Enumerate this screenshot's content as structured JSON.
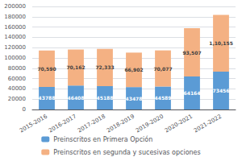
{
  "chart_data": {
    "type": "bar",
    "stacked": true,
    "categories": [
      "2015-2016",
      "2016-2017",
      "2017-2018",
      "2018-2019",
      "2019-2020",
      "2020-2021",
      "2021-2022"
    ],
    "series": [
      {
        "name": "Preinscritos en Primera Opción",
        "color": "#5b9bd5",
        "values": [
          43788,
          46408,
          45188,
          43478,
          44589,
          64164,
          73456
        ]
      },
      {
        "name": "Preinscritos en segunda y sucesivas opciones",
        "color": "#f4b183",
        "values": [
          70590,
          70162,
          72333,
          66902,
          70077,
          93507,
          110155
        ],
        "value_labels": [
          "70,590",
          "70,162",
          "72,333",
          "66,902",
          "70,077",
          "93,507",
          "1,10,155"
        ]
      }
    ],
    "ylim": [
      0,
      200000
    ],
    "yticks": [
      0,
      20000,
      40000,
      60000,
      80000,
      100000,
      120000,
      140000,
      160000,
      180000,
      200000
    ],
    "grid": true,
    "legend": "bottom",
    "data_labels": true
  }
}
